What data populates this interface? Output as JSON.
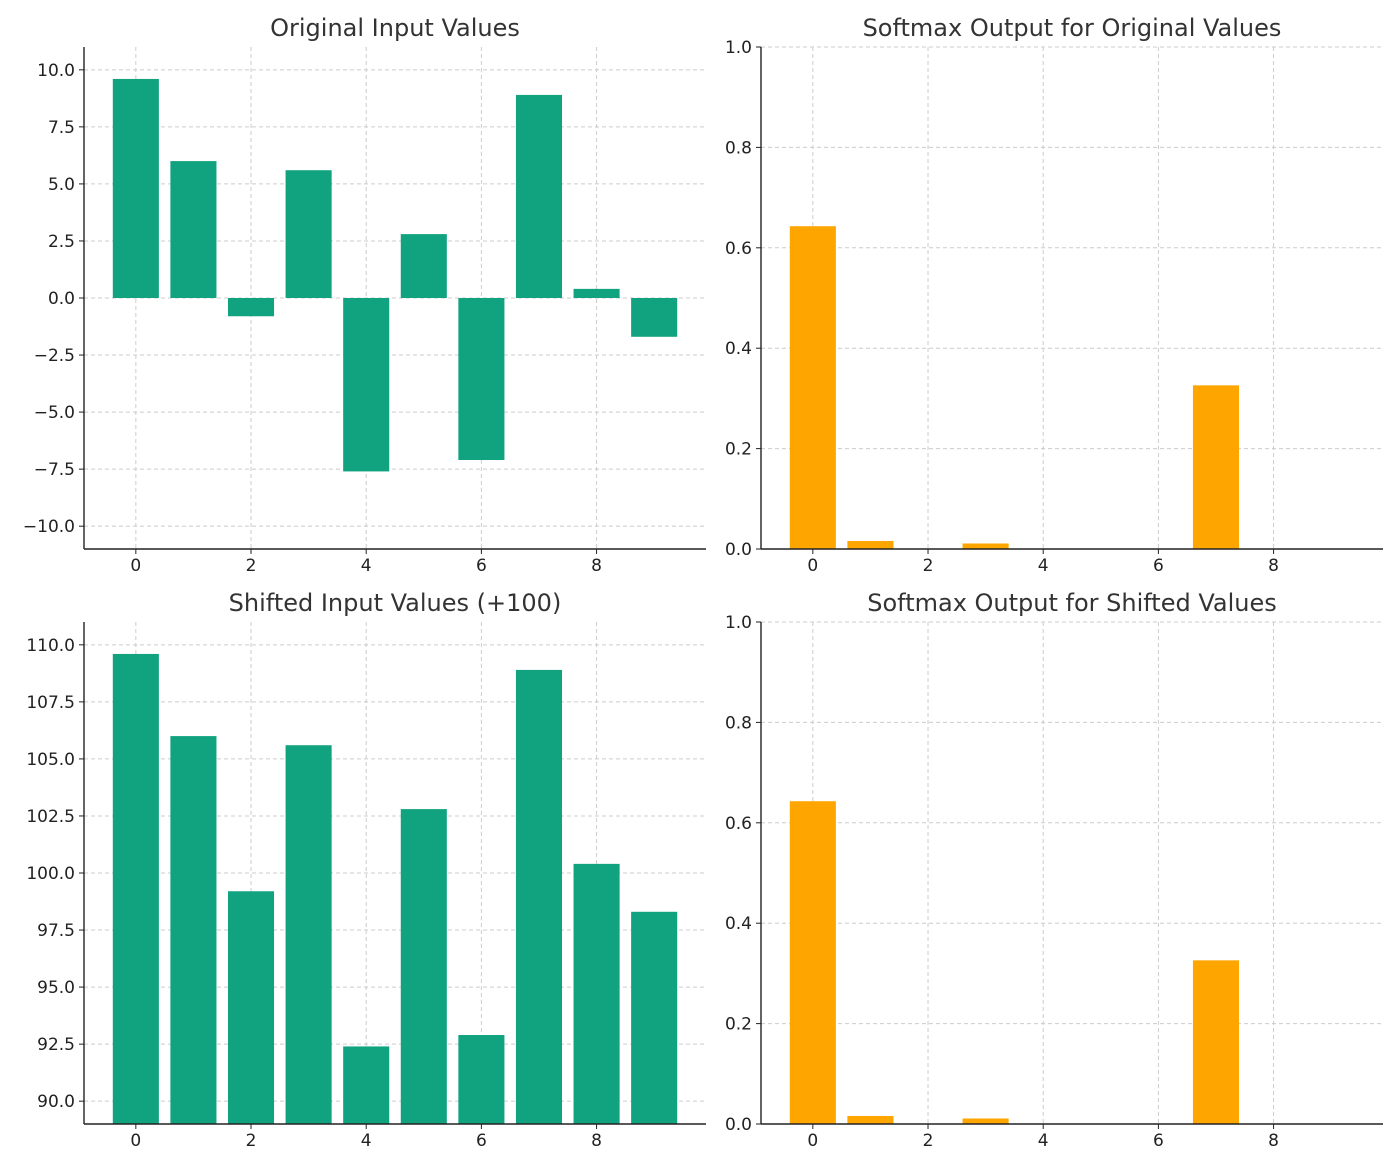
{
  "chart_data": [
    {
      "type": "bar",
      "title": "Original Input Values",
      "x": [
        0,
        1,
        2,
        3,
        4,
        5,
        6,
        7,
        8,
        9
      ],
      "values": [
        9.6,
        6.0,
        -0.8,
        5.6,
        -7.6,
        2.8,
        -7.1,
        8.9,
        0.4,
        -1.7
      ],
      "xlim": [
        -0.9,
        9.9
      ],
      "ylim": [
        -11.0,
        11.0
      ],
      "xticks": [
        0,
        2,
        4,
        6,
        8
      ],
      "xtick_labels": [
        "0",
        "2",
        "4",
        "6",
        "8"
      ],
      "yticks": [
        -10.0,
        -7.5,
        -5.0,
        -2.5,
        0.0,
        2.5,
        5.0,
        7.5,
        10.0
      ],
      "ytick_labels": [
        "−10.0",
        "−7.5",
        "−5.0",
        "−2.5",
        "0.0",
        "2.5",
        "5.0",
        "7.5",
        "10.0"
      ],
      "color": "#11a37f",
      "grid": true
    },
    {
      "type": "bar",
      "title": "Softmax Output for Original Values",
      "x": [
        0,
        1,
        2,
        3,
        4,
        5,
        6,
        7,
        8,
        9
      ],
      "values": [
        0.643,
        0.016,
        0.0,
        0.011,
        0.0,
        0.001,
        0.0,
        0.326,
        0.0,
        0.0
      ],
      "xlim": [
        -0.9,
        9.9
      ],
      "ylim": [
        0.0,
        1.0
      ],
      "xticks": [
        0,
        2,
        4,
        6,
        8
      ],
      "xtick_labels": [
        "0",
        "2",
        "4",
        "6",
        "8"
      ],
      "yticks": [
        0.0,
        0.2,
        0.4,
        0.6,
        0.8,
        1.0
      ],
      "ytick_labels": [
        "0.0",
        "0.2",
        "0.4",
        "0.6",
        "0.8",
        "1.0"
      ],
      "color": "#ffa500",
      "grid": true
    },
    {
      "type": "bar",
      "title": "Shifted Input Values (+100)",
      "x": [
        0,
        1,
        2,
        3,
        4,
        5,
        6,
        7,
        8,
        9
      ],
      "values": [
        109.6,
        106.0,
        99.2,
        105.6,
        92.4,
        102.8,
        92.9,
        108.9,
        100.4,
        98.3
      ],
      "xlim": [
        -0.9,
        9.9
      ],
      "ylim": [
        89.0,
        111.0
      ],
      "xticks": [
        0,
        2,
        4,
        6,
        8
      ],
      "xtick_labels": [
        "0",
        "2",
        "4",
        "6",
        "8"
      ],
      "yticks": [
        90.0,
        92.5,
        95.0,
        97.5,
        100.0,
        102.5,
        105.0,
        107.5,
        110.0
      ],
      "ytick_labels": [
        "90.0",
        "92.5",
        "95.0",
        "97.5",
        "100.0",
        "102.5",
        "105.0",
        "107.5",
        "110.0"
      ],
      "color": "#11a37f",
      "grid": true
    },
    {
      "type": "bar",
      "title": "Softmax Output for Shifted Values",
      "x": [
        0,
        1,
        2,
        3,
        4,
        5,
        6,
        7,
        8,
        9
      ],
      "values": [
        0.643,
        0.016,
        0.0,
        0.011,
        0.0,
        0.001,
        0.0,
        0.326,
        0.0,
        0.0
      ],
      "xlim": [
        -0.9,
        9.9
      ],
      "ylim": [
        0.0,
        1.0
      ],
      "xticks": [
        0,
        2,
        4,
        6,
        8
      ],
      "xtick_labels": [
        "0",
        "2",
        "4",
        "6",
        "8"
      ],
      "yticks": [
        0.0,
        0.2,
        0.4,
        0.6,
        0.8,
        1.0
      ],
      "ytick_labels": [
        "0.0",
        "0.2",
        "0.4",
        "0.6",
        "0.8",
        "1.0"
      ],
      "color": "#ffa500",
      "grid": true
    }
  ]
}
